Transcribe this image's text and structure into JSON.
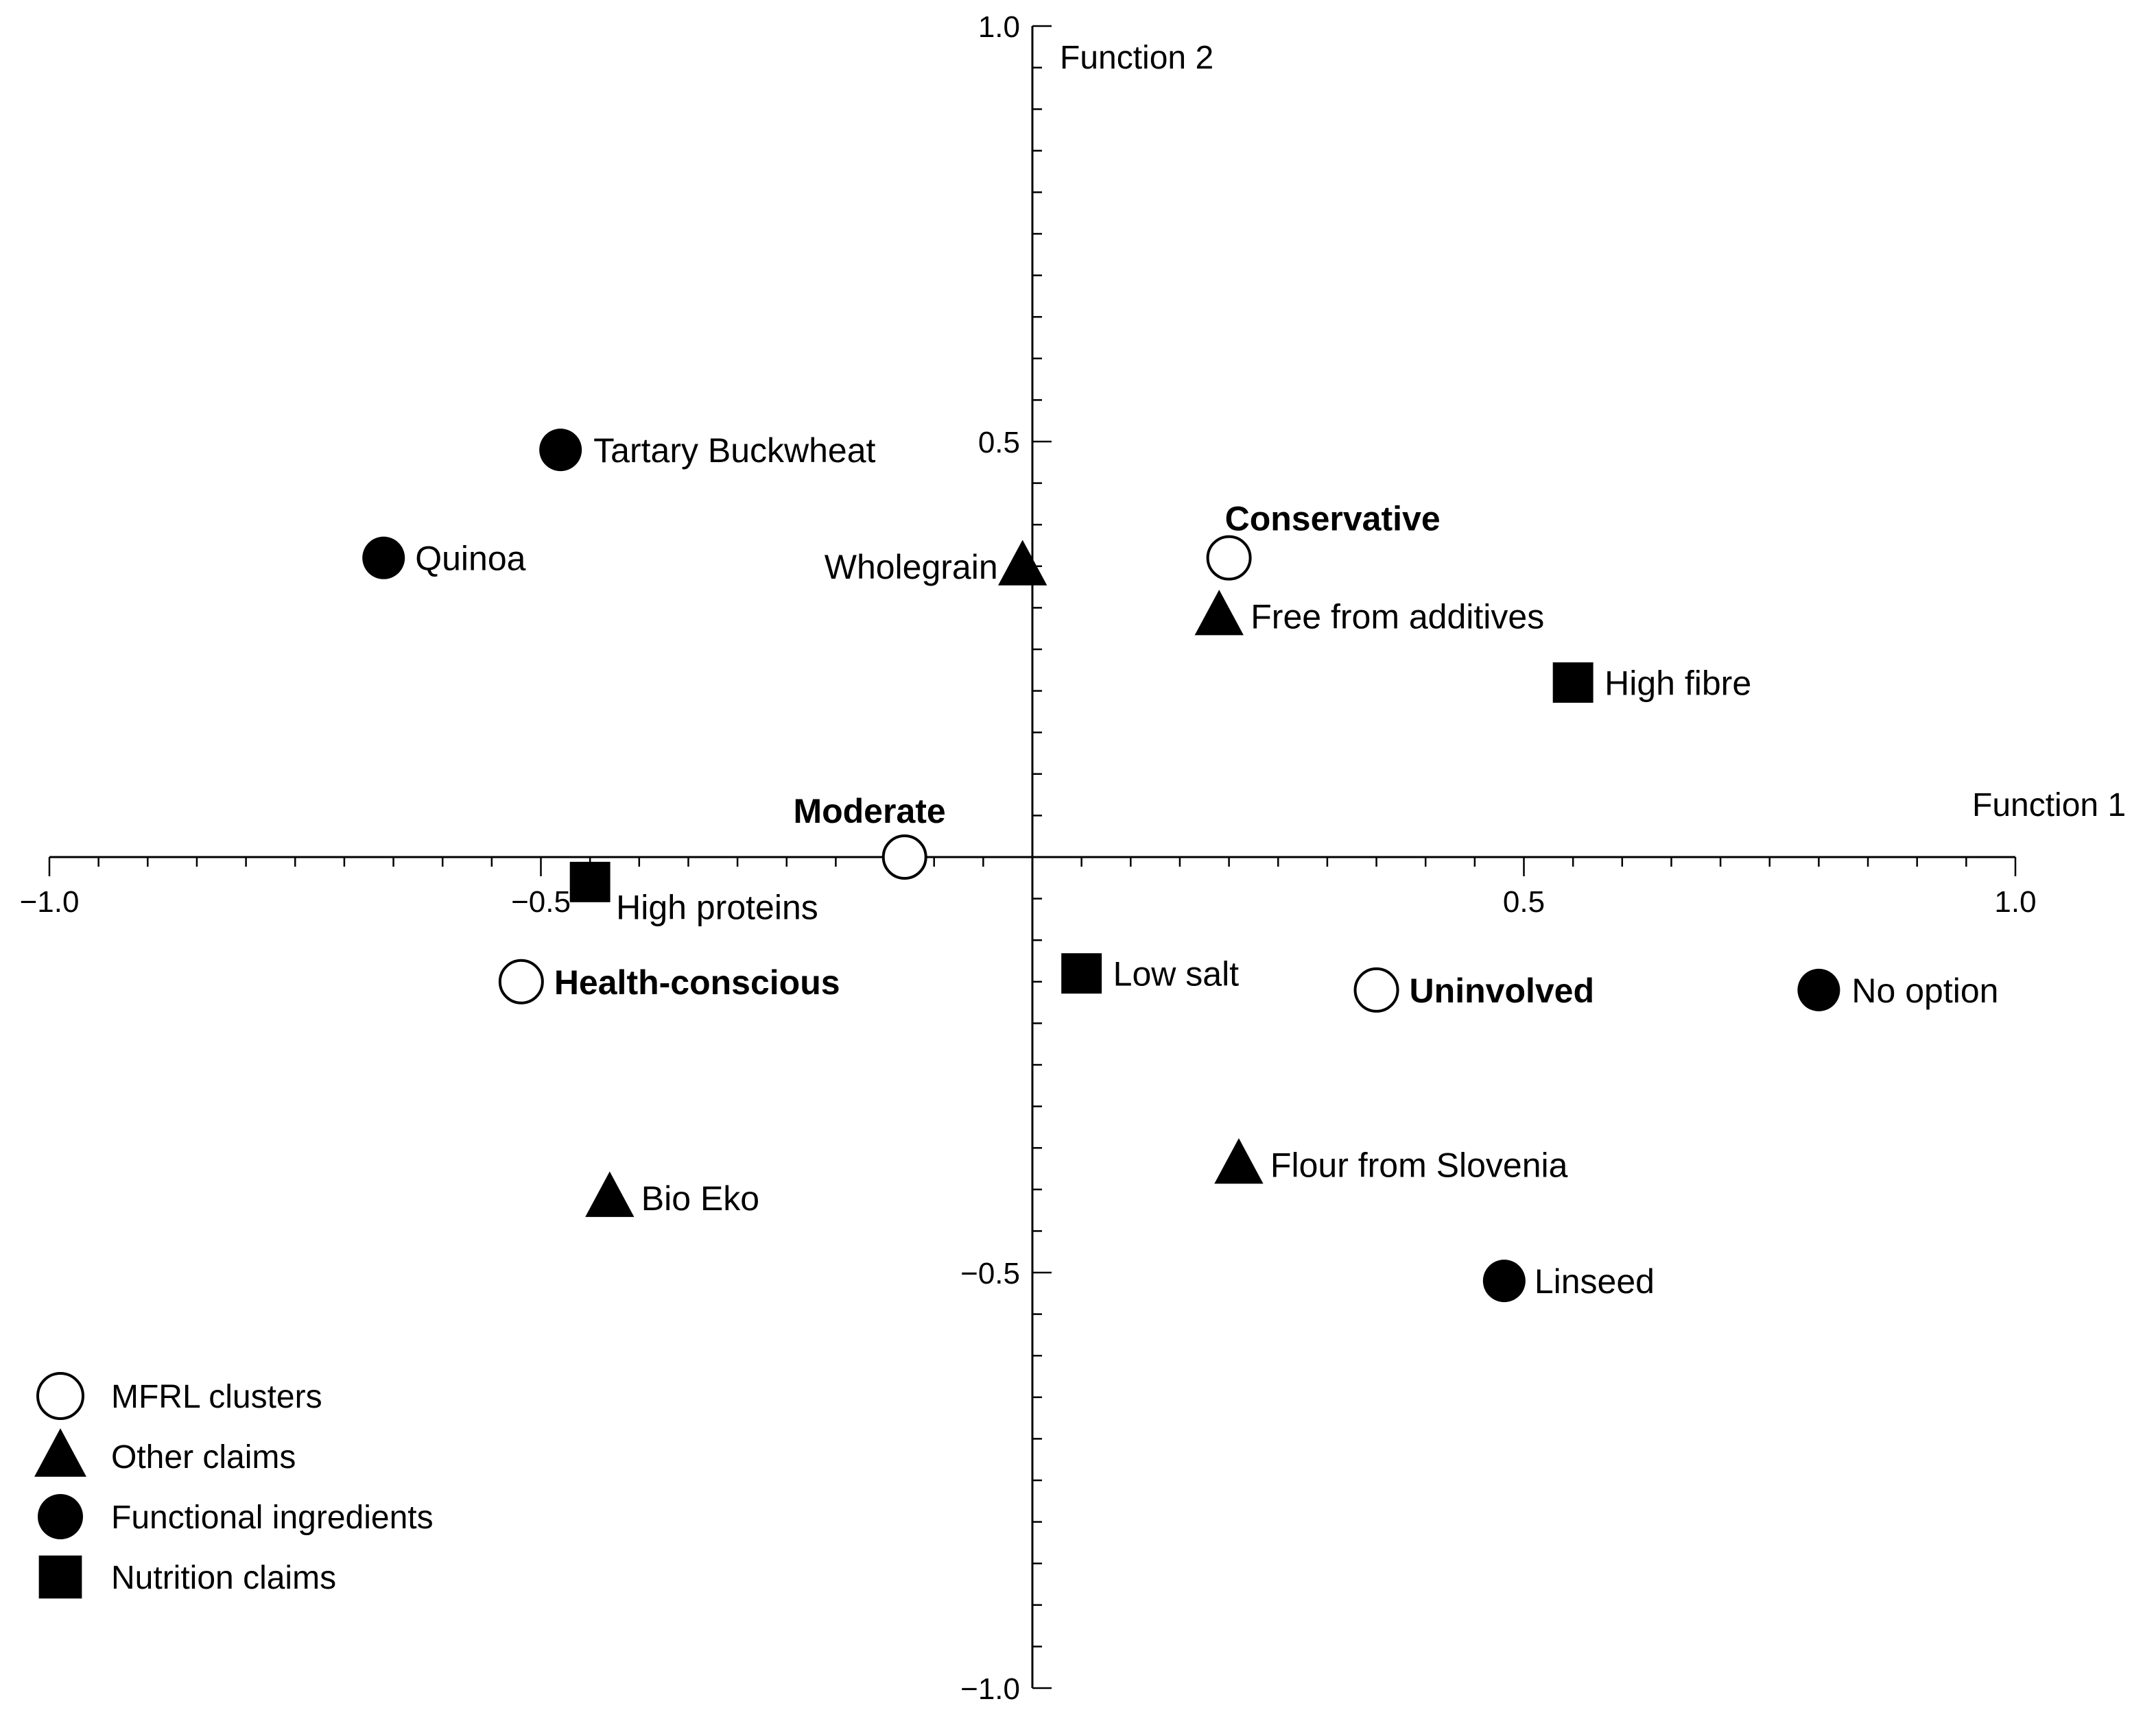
{
  "chart_data": {
    "type": "scatter",
    "title": "",
    "xlabel": "Function 1",
    "ylabel": "Function 2",
    "xlim": [
      -1.0,
      1.0
    ],
    "ylim": [
      -1.0,
      1.0
    ],
    "x_ticks": [
      {
        "value": -1.0,
        "label": "−1.0"
      },
      {
        "value": -0.5,
        "label": "−0.5"
      },
      {
        "value": 0.5,
        "label": "0.5"
      },
      {
        "value": 1.0,
        "label": "1.0"
      }
    ],
    "y_ticks": [
      {
        "value": 1.0,
        "label": "1.0"
      },
      {
        "value": 0.5,
        "label": "0.5"
      },
      {
        "value": -0.5,
        "label": "−0.5"
      },
      {
        "value": -1.0,
        "label": "−1.0"
      }
    ],
    "grid": false,
    "legend_position": "bottom-left",
    "series": [
      {
        "name": "MFRL clusters",
        "marker": "open-circle",
        "bold_labels": true,
        "points": [
          {
            "label": "Conservative",
            "x": 0.2,
            "y": 0.36
          },
          {
            "label": "Moderate",
            "x": -0.13,
            "y": 0.0
          },
          {
            "label": "Health-conscious",
            "x": -0.52,
            "y": -0.15
          },
          {
            "label": "Uninvolved",
            "x": 0.35,
            "y": -0.16
          }
        ]
      },
      {
        "name": "Other claims",
        "marker": "triangle",
        "bold_labels": false,
        "points": [
          {
            "label": "Wholegrain",
            "x": -0.01,
            "y": 0.35
          },
          {
            "label": "Free from additives",
            "x": 0.19,
            "y": 0.29
          },
          {
            "label": "Flour from Slovenia",
            "x": 0.21,
            "y": -0.37
          },
          {
            "label": "Bio Eko",
            "x": -0.43,
            "y": -0.41
          }
        ]
      },
      {
        "name": "Functional ingredients",
        "marker": "filled-circle",
        "bold_labels": false,
        "points": [
          {
            "label": "Tartary Buckwheat",
            "x": -0.48,
            "y": 0.49
          },
          {
            "label": "Quinoa",
            "x": -0.66,
            "y": 0.36
          },
          {
            "label": "No option",
            "x": 0.8,
            "y": -0.16
          },
          {
            "label": "Linseed",
            "x": 0.48,
            "y": -0.51
          }
        ]
      },
      {
        "name": "Nutrition claims",
        "marker": "square",
        "bold_labels": false,
        "points": [
          {
            "label": "High fibre",
            "x": 0.55,
            "y": 0.21
          },
          {
            "label": "High proteins",
            "x": -0.45,
            "y": -0.03
          },
          {
            "label": "Low salt",
            "x": 0.05,
            "y": -0.14
          }
        ]
      }
    ],
    "colors": {
      "marker": "#000000",
      "open_fill": "#ffffff",
      "axis": "#000000"
    }
  }
}
